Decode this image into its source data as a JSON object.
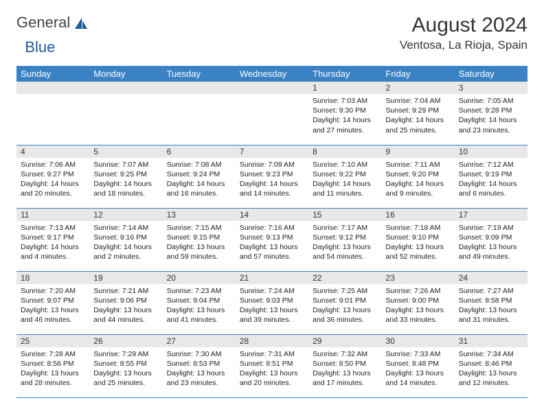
{
  "brand": {
    "part1": "General",
    "part2": "Blue"
  },
  "title": "August 2024",
  "location": "Ventosa, La Rioja, Spain",
  "colors": {
    "accent": "#3b82c4",
    "header_text": "#ffffff",
    "daynum_bg": "#e8e8e8",
    "logo_blue": "#1e5a9e"
  },
  "day_headers": [
    "Sunday",
    "Monday",
    "Tuesday",
    "Wednesday",
    "Thursday",
    "Friday",
    "Saturday"
  ],
  "weeks": [
    [
      null,
      null,
      null,
      null,
      {
        "n": "1",
        "sr": "7:03 AM",
        "ss": "9:30 PM",
        "dl": "14 hours and 27 minutes."
      },
      {
        "n": "2",
        "sr": "7:04 AM",
        "ss": "9:29 PM",
        "dl": "14 hours and 25 minutes."
      },
      {
        "n": "3",
        "sr": "7:05 AM",
        "ss": "9:28 PM",
        "dl": "14 hours and 23 minutes."
      }
    ],
    [
      {
        "n": "4",
        "sr": "7:06 AM",
        "ss": "9:27 PM",
        "dl": "14 hours and 20 minutes."
      },
      {
        "n": "5",
        "sr": "7:07 AM",
        "ss": "9:25 PM",
        "dl": "14 hours and 18 minutes."
      },
      {
        "n": "6",
        "sr": "7:08 AM",
        "ss": "9:24 PM",
        "dl": "14 hours and 16 minutes."
      },
      {
        "n": "7",
        "sr": "7:09 AM",
        "ss": "9:23 PM",
        "dl": "14 hours and 14 minutes."
      },
      {
        "n": "8",
        "sr": "7:10 AM",
        "ss": "9:22 PM",
        "dl": "14 hours and 11 minutes."
      },
      {
        "n": "9",
        "sr": "7:11 AM",
        "ss": "9:20 PM",
        "dl": "14 hours and 9 minutes."
      },
      {
        "n": "10",
        "sr": "7:12 AM",
        "ss": "9:19 PM",
        "dl": "14 hours and 6 minutes."
      }
    ],
    [
      {
        "n": "11",
        "sr": "7:13 AM",
        "ss": "9:17 PM",
        "dl": "14 hours and 4 minutes."
      },
      {
        "n": "12",
        "sr": "7:14 AM",
        "ss": "9:16 PM",
        "dl": "14 hours and 2 minutes."
      },
      {
        "n": "13",
        "sr": "7:15 AM",
        "ss": "9:15 PM",
        "dl": "13 hours and 59 minutes."
      },
      {
        "n": "14",
        "sr": "7:16 AM",
        "ss": "9:13 PM",
        "dl": "13 hours and 57 minutes."
      },
      {
        "n": "15",
        "sr": "7:17 AM",
        "ss": "9:12 PM",
        "dl": "13 hours and 54 minutes."
      },
      {
        "n": "16",
        "sr": "7:18 AM",
        "ss": "9:10 PM",
        "dl": "13 hours and 52 minutes."
      },
      {
        "n": "17",
        "sr": "7:19 AM",
        "ss": "9:09 PM",
        "dl": "13 hours and 49 minutes."
      }
    ],
    [
      {
        "n": "18",
        "sr": "7:20 AM",
        "ss": "9:07 PM",
        "dl": "13 hours and 46 minutes."
      },
      {
        "n": "19",
        "sr": "7:21 AM",
        "ss": "9:06 PM",
        "dl": "13 hours and 44 minutes."
      },
      {
        "n": "20",
        "sr": "7:23 AM",
        "ss": "9:04 PM",
        "dl": "13 hours and 41 minutes."
      },
      {
        "n": "21",
        "sr": "7:24 AM",
        "ss": "9:03 PM",
        "dl": "13 hours and 39 minutes."
      },
      {
        "n": "22",
        "sr": "7:25 AM",
        "ss": "9:01 PM",
        "dl": "13 hours and 36 minutes."
      },
      {
        "n": "23",
        "sr": "7:26 AM",
        "ss": "9:00 PM",
        "dl": "13 hours and 33 minutes."
      },
      {
        "n": "24",
        "sr": "7:27 AM",
        "ss": "8:58 PM",
        "dl": "13 hours and 31 minutes."
      }
    ],
    [
      {
        "n": "25",
        "sr": "7:28 AM",
        "ss": "8:56 PM",
        "dl": "13 hours and 28 minutes."
      },
      {
        "n": "26",
        "sr": "7:29 AM",
        "ss": "8:55 PM",
        "dl": "13 hours and 25 minutes."
      },
      {
        "n": "27",
        "sr": "7:30 AM",
        "ss": "8:53 PM",
        "dl": "13 hours and 23 minutes."
      },
      {
        "n": "28",
        "sr": "7:31 AM",
        "ss": "8:51 PM",
        "dl": "13 hours and 20 minutes."
      },
      {
        "n": "29",
        "sr": "7:32 AM",
        "ss": "8:50 PM",
        "dl": "13 hours and 17 minutes."
      },
      {
        "n": "30",
        "sr": "7:33 AM",
        "ss": "8:48 PM",
        "dl": "13 hours and 14 minutes."
      },
      {
        "n": "31",
        "sr": "7:34 AM",
        "ss": "8:46 PM",
        "dl": "13 hours and 12 minutes."
      }
    ]
  ],
  "labels": {
    "sunrise": "Sunrise:",
    "sunset": "Sunset:",
    "daylight": "Daylight:"
  }
}
